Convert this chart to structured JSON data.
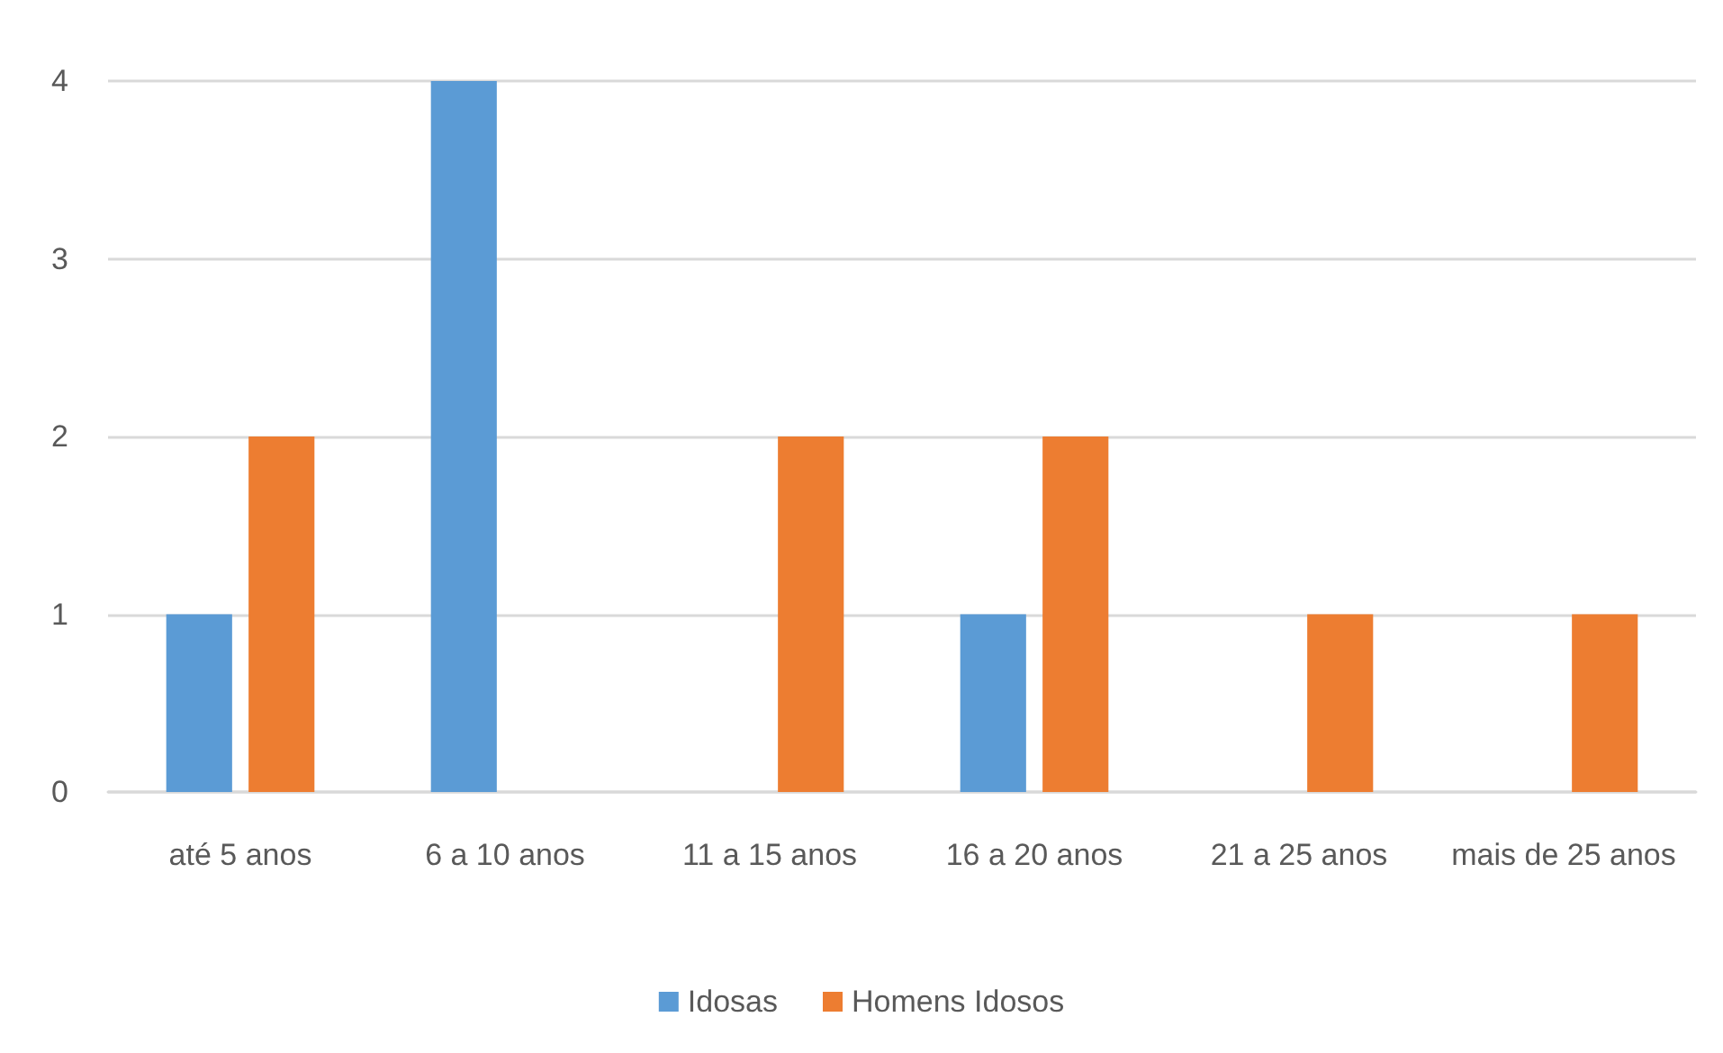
{
  "chart_data": {
    "type": "bar",
    "categories": [
      "até 5 anos",
      "6 a 10 anos",
      "11 a 15 anos",
      "16 a 20 anos",
      "21 a 25 anos",
      "mais de 25 anos"
    ],
    "series": [
      {
        "name": "Idosas",
        "color": "#5b9bd5",
        "values": [
          1,
          4,
          0,
          1,
          0,
          0
        ]
      },
      {
        "name": "Homens Idosos",
        "color": "#ed7d31",
        "values": [
          2,
          0,
          2,
          2,
          1,
          1
        ]
      }
    ],
    "ylim": [
      0,
      4
    ],
    "yticks": [
      0,
      1,
      2,
      3,
      4
    ],
    "grid": "y",
    "legend": "bottom"
  }
}
